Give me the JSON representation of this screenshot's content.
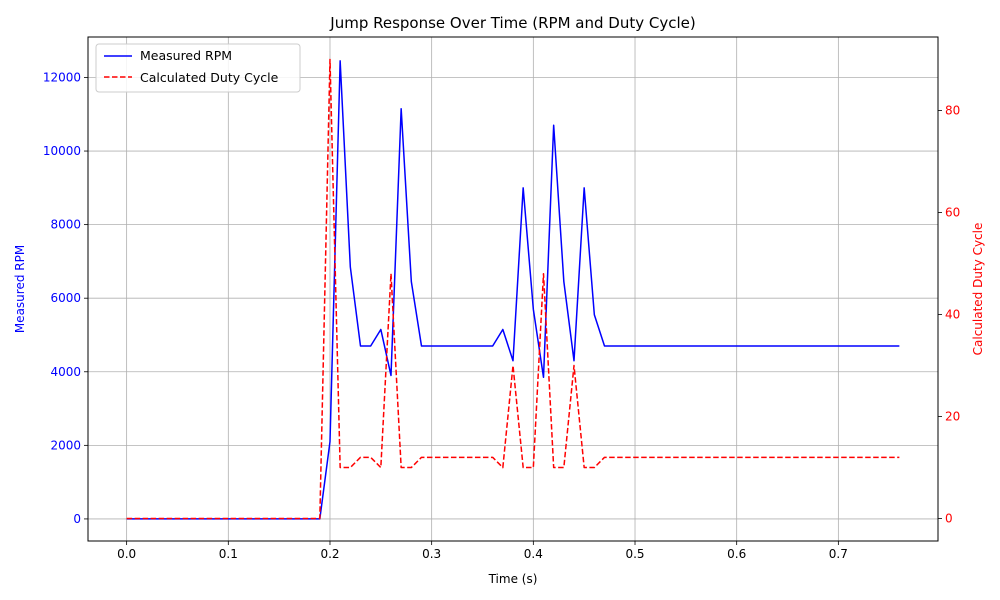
{
  "chart_data": {
    "type": "line",
    "title": "Jump Response Over Time (RPM and Duty Cycle)",
    "xlabel": "Time (s)",
    "ylabel_left": "Measured RPM",
    "ylabel_right": "Calculated Duty Cycle",
    "xlim": [
      -0.038,
      0.798
    ],
    "ylim_left": [
      -600,
      13100
    ],
    "ylim_right": [
      -4.4,
      94.4
    ],
    "x_ticks": [
      0.0,
      0.1,
      0.2,
      0.3,
      0.4,
      0.5,
      0.6,
      0.7
    ],
    "x_tick_labels": [
      "0.0",
      "0.1",
      "0.2",
      "0.3",
      "0.4",
      "0.5",
      "0.6",
      "0.7"
    ],
    "y_left_ticks": [
      0,
      2000,
      4000,
      6000,
      8000,
      10000,
      12000
    ],
    "y_left_tick_labels": [
      "0",
      "2000",
      "4000",
      "6000",
      "8000",
      "10000",
      "12000"
    ],
    "y_right_ticks": [
      0,
      20,
      40,
      60,
      80
    ],
    "y_right_tick_labels": [
      "0",
      "20",
      "40",
      "60",
      "80"
    ],
    "grid": true,
    "legend_position": "top-left",
    "colors": {
      "rpm": "#0000ff",
      "duty": "#ff0000"
    },
    "series": [
      {
        "name": "Measured RPM",
        "axis": "left",
        "style": "solid",
        "x": [
          0.0,
          0.19,
          0.2,
          0.21,
          0.22,
          0.23,
          0.24,
          0.25,
          0.26,
          0.27,
          0.28,
          0.29,
          0.3,
          0.36,
          0.37,
          0.38,
          0.39,
          0.4,
          0.41,
          0.42,
          0.43,
          0.44,
          0.45,
          0.46,
          0.47,
          0.76
        ],
        "values": [
          0,
          0,
          2100,
          12450,
          6850,
          4700,
          4700,
          5150,
          3900,
          11150,
          6450,
          4700,
          4700,
          4700,
          5150,
          4300,
          9000,
          5700,
          3850,
          10700,
          6450,
          4300,
          9000,
          5550,
          4700,
          4700
        ]
      },
      {
        "name": "Calculated Duty Cycle",
        "axis": "right",
        "style": "dashed",
        "x": [
          0.0,
          0.19,
          0.2,
          0.21,
          0.22,
          0.23,
          0.24,
          0.25,
          0.26,
          0.27,
          0.28,
          0.29,
          0.3,
          0.36,
          0.37,
          0.38,
          0.39,
          0.4,
          0.41,
          0.42,
          0.43,
          0.44,
          0.45,
          0.46,
          0.47,
          0.76
        ],
        "values": [
          0,
          0,
          90,
          10,
          10,
          12,
          12,
          10,
          48,
          10,
          10,
          12,
          12,
          12,
          10,
          30,
          10,
          10,
          48,
          10,
          10,
          30,
          10,
          10,
          12,
          12
        ]
      }
    ]
  }
}
